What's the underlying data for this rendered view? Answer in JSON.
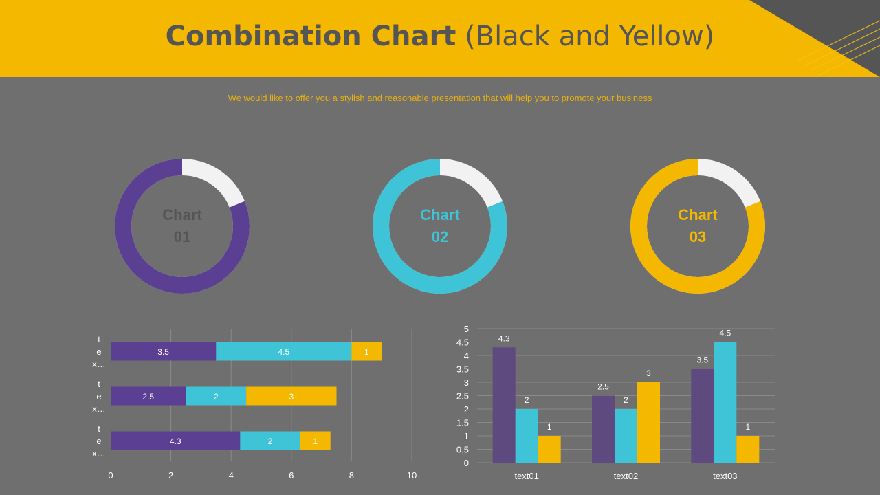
{
  "slide": {
    "title_bold": "Combination Chart",
    "title_rest": "(Black and Yellow)",
    "subtitle": "We would like to offer you a stylish and reasonable presentation that will help you to promote your business"
  },
  "colors": {
    "yellow": "#f5b800",
    "purple": "#5b3f93",
    "cyan": "#3fc3d6",
    "white_segment": "#f2f2f2",
    "background": "#6f6f6f",
    "dark_corner": "#555555"
  },
  "donuts": [
    {
      "line1": "Chart",
      "line2": "01",
      "percent": 81,
      "color": "#5b3f93",
      "label_color": "#555555"
    },
    {
      "line1": "Chart",
      "line2": "02",
      "percent": 81,
      "color": "#3fc3d6",
      "label_color": "#3fc3d6"
    },
    {
      "line1": "Chart",
      "line2": "03",
      "percent": 81,
      "color": "#f5b800",
      "label_color": "#f5b800"
    }
  ],
  "chart_data": [
    {
      "type": "bar",
      "orientation": "horizontal",
      "stacked": true,
      "categories": [
        "t\ne\nx…",
        "t\ne\nx…",
        "t\ne\nx…"
      ],
      "series": [
        {
          "values": [
            3.5,
            2.5,
            4.3
          ],
          "color": "#5b3f93"
        },
        {
          "values": [
            4.5,
            2,
            2
          ],
          "color": "#3fc3d6"
        },
        {
          "values": [
            1,
            3,
            1
          ],
          "color": "#f5b800"
        }
      ],
      "xlim": [
        0,
        10
      ],
      "x_ticks": [
        0,
        2,
        4,
        6,
        8,
        10
      ],
      "grid": "vertical"
    },
    {
      "type": "bar",
      "orientation": "vertical",
      "categories": [
        "text01",
        "text02",
        "text03"
      ],
      "series": [
        {
          "values": [
            4.3,
            2.5,
            3.5
          ],
          "color": "#5e4a7e"
        },
        {
          "values": [
            2,
            2,
            4.5
          ],
          "color": "#3fc3d6"
        },
        {
          "values": [
            1,
            3,
            1
          ],
          "color": "#f5b800"
        }
      ],
      "ylim": [
        0,
        5
      ],
      "y_ticks": [
        0,
        0.5,
        1,
        1.5,
        2,
        2.5,
        3,
        3.5,
        4,
        4.5,
        5
      ],
      "grid": "horizontal"
    }
  ]
}
